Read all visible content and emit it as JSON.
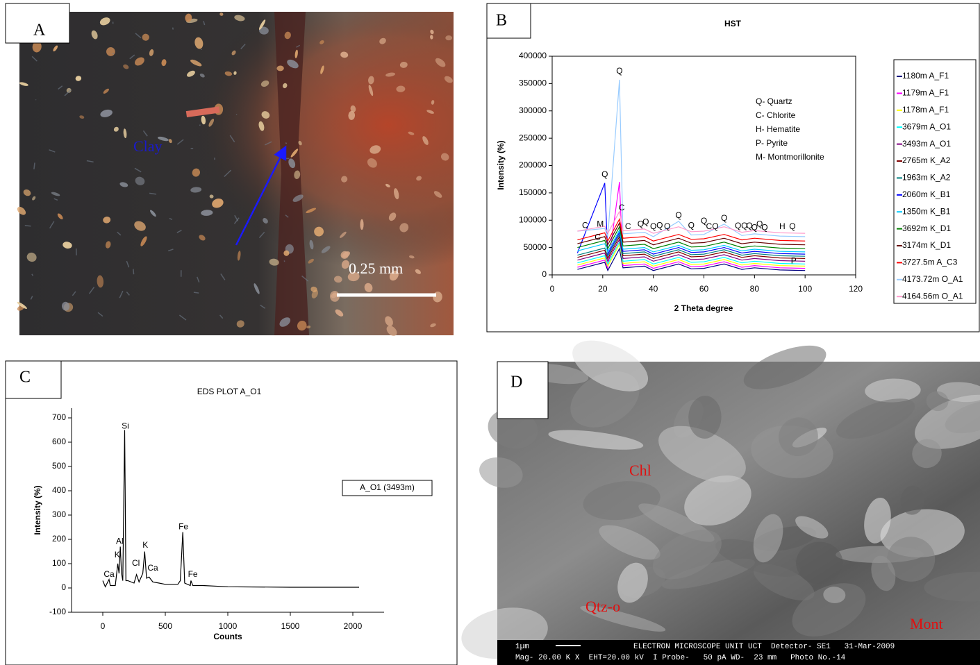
{
  "panels": [
    {
      "label": "A",
      "texts": [
        "Clay",
        "0.25 mm"
      ]
    },
    {
      "label": "B"
    },
    {
      "label": "C"
    },
    {
      "label": "D",
      "texts": [
        "Chl",
        "Qtz-o",
        "Mont",
        "1µm",
        "ELECTRON MICROSCOPE UNIT UCT  Detector- SE1   31-Mar-2009",
        "Mag- 20.00 K X  EHT=20.00 kV  I Probe-   50 pA WD-  23 mm   Photo No.-14"
      ]
    }
  ],
  "chart_data": [
    {
      "type": "line",
      "title": "HST",
      "x_label": "2 Theta degree",
      "y_label": "Intensity (%)",
      "xlim": [
        0,
        120
      ],
      "ylim": [
        0,
        400000
      ],
      "xticks": [
        0,
        20,
        40,
        60,
        80,
        100,
        120
      ],
      "yticks": [
        0,
        50000,
        100000,
        150000,
        200000,
        250000,
        300000,
        350000,
        400000
      ],
      "notes": [
        "Q- Quartz",
        "C- Chlorite",
        "H- Hematite",
        "P- Pyrite",
        "M- Montmorillonite"
      ],
      "x": [
        10,
        20.8,
        22,
        26.6,
        28,
        36.5,
        40,
        50,
        55,
        60,
        68,
        75,
        80,
        90,
        100
      ],
      "series": [
        {
          "name": "1180m A_F1",
          "color": "#000080",
          "values": [
            10000,
            23000,
            8000,
            48000,
            13000,
            16000,
            8000,
            20000,
            11000,
            12000,
            20000,
            10000,
            13000,
            9000,
            8000
          ]
        },
        {
          "name": "1179m A_F1",
          "color": "#ff00ff",
          "values": [
            14000,
            27000,
            12000,
            170000,
            17000,
            20000,
            12000,
            24000,
            15000,
            16000,
            24000,
            14000,
            17000,
            13000,
            12000
          ]
        },
        {
          "name": "1178m A_F1",
          "color": "#ffff00",
          "values": [
            18000,
            31000,
            16000,
            56000,
            21000,
            24000,
            16000,
            28000,
            19000,
            20000,
            28000,
            18000,
            21000,
            17000,
            16000
          ]
        },
        {
          "name": "3679m A_O1",
          "color": "#00ffff",
          "values": [
            22000,
            35000,
            20000,
            60000,
            25000,
            28000,
            20000,
            32000,
            23000,
            24000,
            32000,
            22000,
            25000,
            21000,
            20000
          ]
        },
        {
          "name": "3493m A_O1",
          "color": "#800080",
          "values": [
            27000,
            40000,
            25000,
            65000,
            30000,
            33000,
            25000,
            37000,
            28000,
            29000,
            37000,
            27000,
            30000,
            26000,
            25000
          ]
        },
        {
          "name": "2765m K_A2",
          "color": "#800000",
          "values": [
            32000,
            45000,
            30000,
            70000,
            35000,
            38000,
            30000,
            42000,
            33000,
            34000,
            42000,
            32000,
            35000,
            31000,
            30000
          ]
        },
        {
          "name": "1963m K_A2",
          "color": "#008080",
          "values": [
            36000,
            49000,
            34000,
            74000,
            39000,
            42000,
            34000,
            46000,
            37000,
            38000,
            46000,
            36000,
            39000,
            35000,
            34000
          ]
        },
        {
          "name": "2060m K_B1",
          "color": "#0000ff",
          "values": [
            40000,
            168000,
            38000,
            78000,
            43000,
            46000,
            38000,
            50000,
            41000,
            42000,
            50000,
            40000,
            43000,
            39000,
            38000
          ]
        },
        {
          "name": "1350m K_B1",
          "color": "#00ccff",
          "values": [
            44000,
            57000,
            42000,
            82000,
            47000,
            50000,
            42000,
            54000,
            45000,
            46000,
            54000,
            44000,
            47000,
            43000,
            42000
          ]
        },
        {
          "name": "3692m K_D1",
          "color": "#008000",
          "values": [
            50000,
            63000,
            48000,
            88000,
            53000,
            56000,
            48000,
            60000,
            51000,
            52000,
            60000,
            50000,
            53000,
            49000,
            48000
          ]
        },
        {
          "name": "3174m K_D1",
          "color": "#660000",
          "values": [
            57000,
            70000,
            55000,
            95000,
            60000,
            63000,
            55000,
            67000,
            58000,
            59000,
            67000,
            57000,
            60000,
            56000,
            55000
          ]
        },
        {
          "name": "3727.5m A_C3",
          "color": "#ff0000",
          "values": [
            64000,
            77000,
            62000,
            102000,
            67000,
            70000,
            62000,
            74000,
            65000,
            66000,
            74000,
            64000,
            67000,
            63000,
            62000
          ]
        },
        {
          "name": "4173.72m O_A1",
          "color": "#99ccff",
          "values": [
            80000,
            85000,
            70000,
            357000,
            75000,
            78000,
            70000,
            98000,
            73000,
            74000,
            93000,
            72000,
            75000,
            71000,
            70000
          ]
        },
        {
          "name": "4164.56m O_A1",
          "color": "#ff99cc",
          "values": [
            80000,
            89000,
            76000,
            116000,
            81000,
            84000,
            76000,
            88000,
            79000,
            80000,
            88000,
            78000,
            81000,
            77000,
            76000
          ]
        }
      ],
      "annotations": [
        {
          "text": "Q",
          "x": 26.6,
          "y": 372000
        },
        {
          "text": "Q",
          "x": 20.8,
          "y": 183000
        },
        {
          "text": "C",
          "x": 27.5,
          "y": 122000
        },
        {
          "text": "C",
          "x": 13,
          "y": 90000
        },
        {
          "text": "M",
          "x": 19,
          "y": 92000
        },
        {
          "text": "C",
          "x": 18,
          "y": 68000
        },
        {
          "text": "C",
          "x": 30,
          "y": 88000
        },
        {
          "text": "Q",
          "x": 35,
          "y": 92000
        },
        {
          "text": "Q",
          "x": 37,
          "y": 96000
        },
        {
          "text": "Q",
          "x": 40,
          "y": 88000
        },
        {
          "text": "Q",
          "x": 42.5,
          "y": 90000
        },
        {
          "text": "Q",
          "x": 45.5,
          "y": 88000
        },
        {
          "text": "Q",
          "x": 50,
          "y": 108000
        },
        {
          "text": "Q",
          "x": 55,
          "y": 90000
        },
        {
          "text": "Q",
          "x": 60,
          "y": 98000
        },
        {
          "text": "C",
          "x": 62,
          "y": 88000
        },
        {
          "text": "Q",
          "x": 64.5,
          "y": 88000
        },
        {
          "text": "Q",
          "x": 68,
          "y": 103000
        },
        {
          "text": "Q",
          "x": 73.5,
          "y": 89000
        },
        {
          "text": "Q",
          "x": 76,
          "y": 89000
        },
        {
          "text": "Q",
          "x": 78,
          "y": 89000
        },
        {
          "text": "Q",
          "x": 80,
          "y": 86000
        },
        {
          "text": "Q",
          "x": 82,
          "y": 92000
        },
        {
          "text": "Q",
          "x": 84,
          "y": 86000
        },
        {
          "text": "H",
          "x": 91,
          "y": 88000
        },
        {
          "text": "Q",
          "x": 95,
          "y": 88000
        },
        {
          "text": "P",
          "x": 95.5,
          "y": 25000
        }
      ]
    },
    {
      "type": "line",
      "title": "EDS PLOT A_O1",
      "x_label": "Counts",
      "y_label": "Intensity (%)",
      "xlim": [
        -250,
        2250
      ],
      "ylim": [
        -100,
        740
      ],
      "xticks": [
        0,
        500,
        1000,
        1500,
        2000
      ],
      "yticks": [
        -100,
        0,
        100,
        200,
        300,
        400,
        500,
        600,
        700
      ],
      "x": [
        0,
        20,
        50,
        60,
        100,
        120,
        130,
        140,
        150,
        160,
        175,
        185,
        200,
        250,
        270,
        290,
        320,
        335,
        350,
        370,
        400,
        450,
        500,
        550,
        600,
        620,
        640,
        655,
        700,
        705,
        720,
        800,
        1000,
        1500,
        2050
      ],
      "series": [
        {
          "name": "A_O1 (3493m)",
          "color": "#000000",
          "values": [
            30,
            5,
            35,
            10,
            10,
            100,
            60,
            170,
            60,
            30,
            650,
            30,
            30,
            20,
            55,
            25,
            60,
            150,
            40,
            45,
            25,
            20,
            15,
            15,
            15,
            30,
            230,
            20,
            10,
            30,
            10,
            10,
            5,
            3,
            3
          ]
        }
      ],
      "annotations": [
        {
          "text": "Si",
          "x": 180,
          "y": 665
        },
        {
          "text": "Al",
          "x": 135,
          "y": 190
        },
        {
          "text": "K",
          "x": 115,
          "y": 135
        },
        {
          "text": "Ca",
          "x": 50,
          "y": 55
        },
        {
          "text": "Cl",
          "x": 265,
          "y": 100
        },
        {
          "text": "K",
          "x": 340,
          "y": 175
        },
        {
          "text": "Ca",
          "x": 400,
          "y": 80
        },
        {
          "text": "Fe",
          "x": 645,
          "y": 250
        },
        {
          "text": "Fe",
          "x": 720,
          "y": 55
        }
      ]
    }
  ]
}
